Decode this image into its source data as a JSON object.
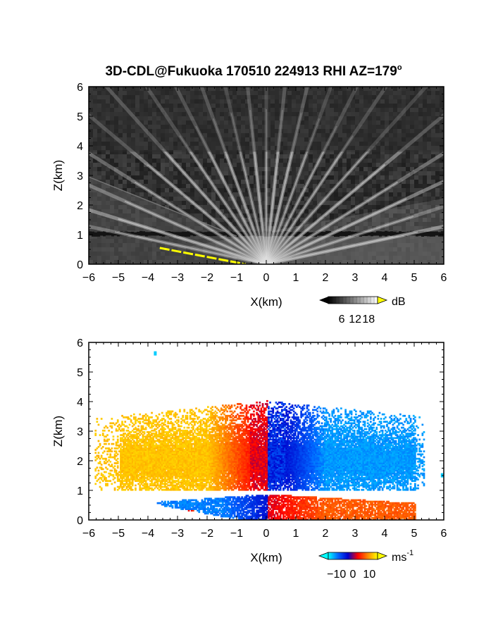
{
  "title": "3D-CDL@Fukuoka 170510 224913 RHI AZ=179",
  "title_degree_symbol": "o",
  "chart_data": [
    {
      "type": "heatmap",
      "quantity": "backscatter intensity",
      "xlabel": "X(km)",
      "ylabel": "Z(km)",
      "xlim": [
        -6,
        6
      ],
      "ylim": [
        0,
        6
      ],
      "xticks": [
        -6,
        -5,
        -4,
        -3,
        -2,
        -1,
        0,
        1,
        2,
        3,
        4,
        5,
        6
      ],
      "yticks": [
        0,
        1,
        2,
        3,
        4,
        5,
        6
      ],
      "background_color": "#2e2e2e",
      "colorbar": {
        "unit": "dB",
        "ticks": [
          6,
          12,
          18
        ],
        "range": [
          0,
          22
        ],
        "colors": [
          "#000000",
          "#ffffff"
        ],
        "over_color": "#ffff00"
      },
      "features": {
        "origin_x_km": 0,
        "ray_elevation_angles_deg": [
          12,
          18,
          25,
          32,
          40,
          48,
          56,
          63,
          70,
          77,
          84,
          90,
          96,
          103,
          110,
          117,
          124,
          132,
          140,
          148,
          156,
          163,
          168
        ],
        "layer_top_km": 1.0,
        "dark_band_km": [
          0.95,
          1.1
        ],
        "sloped_edge": {
          "x_km": [
            -6,
            -1
          ],
          "z_km": [
            2.95,
            0.95
          ]
        },
        "low_cone_edge_deg": 15,
        "yellow_segment": {
          "x_km": [
            -3.6,
            -0.7
          ],
          "z_km": [
            0.55,
            0.0
          ]
        }
      }
    },
    {
      "type": "heatmap",
      "quantity": "doppler velocity",
      "xlabel": "X(km)",
      "ylabel": "Z(km)",
      "xlim": [
        -6,
        6
      ],
      "ylim": [
        0,
        6
      ],
      "xticks": [
        -6,
        -5,
        -4,
        -3,
        -2,
        -1,
        0,
        1,
        2,
        3,
        4,
        5,
        6
      ],
      "yticks": [
        0,
        1,
        2,
        3,
        4,
        5,
        6
      ],
      "background_color": "#ffffff",
      "colorbar": {
        "unit": "ms",
        "unit_exponent": "-1",
        "ticks": [
          -10,
          0,
          10
        ],
        "range": [
          -15,
          15
        ],
        "colors": [
          "#00ffff",
          "#0066ff",
          "#0000cc",
          "#ff0000",
          "#ff8800",
          "#ffff00"
        ]
      },
      "features": {
        "upper_region": {
          "x_km": [
            -5.8,
            5.3
          ],
          "z_km": [
            1.0,
            4.1
          ],
          "left_sign": "positive",
          "right_sign": "negative"
        },
        "lower_region": {
          "x_km": [
            -3.7,
            5.0
          ],
          "z_km": [
            0.0,
            0.9
          ],
          "left_sign": "negative",
          "right_sign": "positive"
        },
        "stray_pixels": [
          {
            "x_km": -3.8,
            "z_km": 5.62
          },
          {
            "x_km": 5.9,
            "z_km": 1.5
          }
        ]
      }
    }
  ]
}
